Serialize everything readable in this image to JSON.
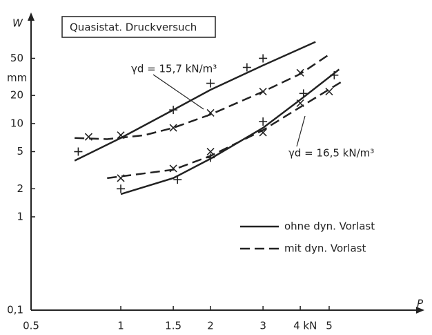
{
  "chart_data": {
    "type": "line",
    "log_x": true,
    "log_y": true,
    "title": "Quasistat. Druckversuch",
    "y_label": "W",
    "y_unit": "mm",
    "x_label": "P",
    "xlim": [
      0.5,
      10
    ],
    "ylim": [
      0.1,
      150
    ],
    "xticks": [
      0.5,
      1,
      1.5,
      2,
      3,
      {
        "value": 4,
        "label": "4 kN"
      },
      5
    ],
    "yticks": [
      {
        "value": 0.1,
        "label": "0,1"
      },
      1,
      2,
      5,
      10,
      20,
      50
    ],
    "color": "#222222",
    "annotations": [
      "γd = 15,7 kN/m³",
      "γd = 16,5 kN/m³"
    ],
    "legend": [
      {
        "label": "ohne dyn. Vorlast",
        "style": "solid"
      },
      {
        "label": "mit dyn. Vorlast",
        "style": "dashed"
      }
    ],
    "groups": [
      {
        "style": "solid",
        "marker": "+",
        "points": {
          "x": [
            0.72,
            1.5,
            2.0,
            2.65,
            3.0
          ],
          "values": [
            5.0,
            14,
            27,
            40,
            50
          ]
        },
        "curve": {
          "x": [
            0.7,
            1,
            1.5,
            2,
            3,
            4.5
          ],
          "values": [
            4,
            7,
            14,
            23,
            42,
            75
          ]
        }
      },
      {
        "style": "dashed",
        "marker": "x",
        "points": {
          "x": [
            0.78,
            1.0,
            1.5,
            2,
            3,
            4
          ],
          "values": [
            7.2,
            7.5,
            9,
            13,
            22,
            35
          ]
        },
        "curve": {
          "x": [
            0.7,
            0.9,
            1.2,
            1.5,
            2,
            3,
            4,
            5
          ],
          "values": [
            7,
            6.8,
            7.5,
            9,
            12.5,
            22,
            34,
            55
          ]
        }
      },
      {
        "style": "solid",
        "marker": "+",
        "points": {
          "x": [
            1.0,
            1.55,
            2.0,
            3.0,
            4.1,
            5.2
          ],
          "values": [
            2.0,
            2.5,
            4.3,
            10.5,
            21,
            33
          ]
        },
        "curve": {
          "x": [
            1,
            1.5,
            2,
            3,
            4,
            5.4
          ],
          "values": [
            1.75,
            2.6,
            4.2,
            9,
            18,
            38
          ]
        }
      },
      {
        "style": "dashed",
        "marker": "x",
        "points": {
          "x": [
            1.0,
            1.5,
            2,
            3,
            4,
            5
          ],
          "values": [
            2.6,
            3.3,
            5,
            8,
            16.5,
            22
          ]
        },
        "curve": {
          "x": [
            0.9,
            1.5,
            2,
            3,
            4,
            5.5
          ],
          "values": [
            2.6,
            3.2,
            4.5,
            8.5,
            15,
            28
          ]
        }
      }
    ]
  }
}
